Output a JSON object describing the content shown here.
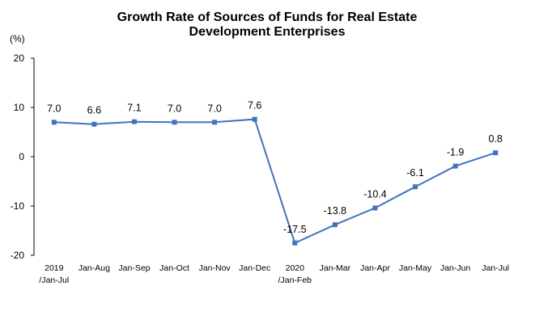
{
  "chart_data": {
    "type": "line",
    "title_lines": [
      "Growth Rate of Sources of Funds for Real Estate",
      "Development Enterprises"
    ],
    "ylabel": "(%)",
    "ylim": [
      -20,
      20
    ],
    "yticks": [
      20,
      10,
      0,
      -10,
      -20
    ],
    "categories": [
      [
        "2019",
        "/Jan-Jul"
      ],
      [
        "Jan-Aug"
      ],
      [
        "Jan-Sep"
      ],
      [
        "Jan-Oct"
      ],
      [
        "Jan-Nov"
      ],
      [
        "Jan-Dec"
      ],
      [
        "2020",
        "/Jan-Feb"
      ],
      [
        "Jan-Mar"
      ],
      [
        "Jan-Apr"
      ],
      [
        "Jan-May"
      ],
      [
        "Jan-Jun"
      ],
      [
        "Jan-Jul"
      ]
    ],
    "values": [
      7.0,
      6.6,
      7.1,
      7.0,
      7.0,
      7.6,
      -17.5,
      -13.8,
      -10.4,
      -6.1,
      -1.9,
      0.8
    ],
    "data_labels": [
      "7.0",
      "6.6",
      "7.1",
      "7.0",
      "7.0",
      "7.6",
      "-17.5",
      "-13.8",
      "-10.4",
      "-6.1",
      "-1.9",
      "0.8"
    ],
    "line_color": "#3f73bd",
    "grid": false,
    "legend": "none"
  }
}
